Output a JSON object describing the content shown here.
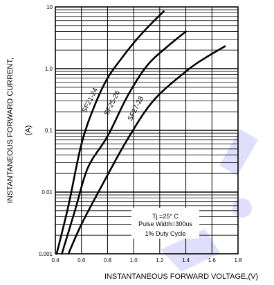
{
  "chart_data": {
    "type": "line",
    "xlabel": "INSTANTANEOUS FORWARD VOLTAGE,(V)",
    "ylabel_line1": "INSTANTANEOUS FORWARD CURRENT,",
    "ylabel_line2": "(A)",
    "x_scale": "linear",
    "xlim": [
      0.4,
      1.8
    ],
    "x_ticks": [
      "0.4",
      "0.6",
      "0.8",
      "1.0",
      "1.2",
      "1.4",
      "1.6",
      "1.8"
    ],
    "y_scale": "log",
    "ylim": [
      0.001,
      10
    ],
    "y_ticks": [
      "0.001",
      "0.01",
      "0.1",
      "1.0",
      "10"
    ],
    "grid": true,
    "series": [
      {
        "name": "SF21-24",
        "points": [
          [
            0.41,
            0.001
          ],
          [
            0.5,
            0.006
          ],
          [
            0.6,
            0.06
          ],
          [
            0.7,
            0.25
          ],
          [
            0.8,
            0.7
          ],
          [
            0.9,
            1.4
          ],
          [
            1.0,
            2.6
          ],
          [
            1.1,
            4.5
          ],
          [
            1.23,
            8.5
          ]
        ]
      },
      {
        "name": "SF25-26",
        "points": [
          [
            0.45,
            0.001
          ],
          [
            0.55,
            0.005
          ],
          [
            0.65,
            0.025
          ],
          [
            0.8,
            0.08
          ],
          [
            0.95,
            0.35
          ],
          [
            1.1,
            1.1
          ],
          [
            1.25,
            2.2
          ],
          [
            1.4,
            4.0
          ]
        ]
      },
      {
        "name": "SF27-28",
        "points": [
          [
            0.5,
            0.001
          ],
          [
            0.6,
            0.003
          ],
          [
            0.75,
            0.012
          ],
          [
            0.95,
            0.07
          ],
          [
            1.15,
            0.3
          ],
          [
            1.4,
            0.9
          ],
          [
            1.55,
            1.5
          ],
          [
            1.7,
            2.3
          ]
        ]
      }
    ],
    "annotation": [
      "Tj =25° C",
      "Pulse Width=300us",
      "1% Duty Cycle"
    ]
  },
  "colors": {
    "line": "#000000",
    "grid": "#000000",
    "watermark": "#0000ee"
  }
}
